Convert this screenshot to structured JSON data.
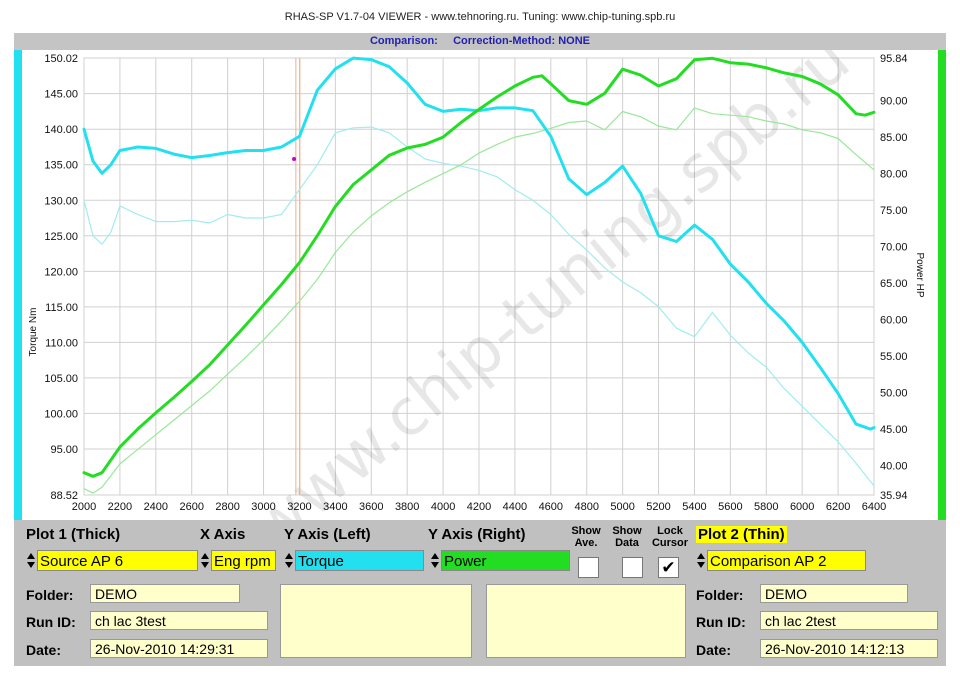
{
  "app_title": "RHAS-SP V1.7-04  VIEWER - www.tehnoring.ru. Tuning: www.chip-tuning.spb.ru",
  "subtitle": {
    "label": "Comparison:",
    "method": "Correction-Method: NONE"
  },
  "watermark": "www.chip-tuning.spb.ru",
  "colors": {
    "torque": "#22e0f0",
    "power": "#22dd22",
    "cursor": "#f0b090",
    "marker": "#cc00cc",
    "panel": "#c0c0c0",
    "field": "#ffffcc",
    "select_yellow": "#ffff00"
  },
  "chart_data": {
    "type": "line",
    "xlim": [
      2000,
      6400
    ],
    "x_ticks": [
      "2000",
      "2200",
      "2400",
      "2600",
      "2800",
      "3000",
      "3200",
      "3400",
      "3600",
      "3800",
      "4000",
      "4200",
      "4400",
      "4600",
      "4800",
      "5000",
      "5200",
      "5400",
      "5600",
      "5800",
      "6000",
      "6200",
      "6400"
    ],
    "ylim_left": [
      88.52,
      150.02
    ],
    "y_left_ticks": [
      "150.02",
      "145.00",
      "140.00",
      "135.00",
      "130.00",
      "125.00",
      "120.00",
      "115.00",
      "110.00",
      "105.00",
      "100.00",
      "95.00",
      "88.52"
    ],
    "ylabel_left": "Torque Nm",
    "ylim_right": [
      35.94,
      95.84
    ],
    "y_right_ticks": [
      "95.84",
      "90.00",
      "85.00",
      "80.00",
      "75.00",
      "70.00",
      "65.00",
      "60.00",
      "55.00",
      "50.00",
      "45.00",
      "40.00",
      "35.94"
    ],
    "ylabel_right": "Power HP",
    "grid": true,
    "cursor_x": 3180,
    "marker": {
      "x": 3170,
      "y": 135.8
    },
    "series": [
      {
        "axis": "left",
        "thick": true,
        "color": "#22e0f0",
        "x": [
          2000,
          2050,
          2100,
          2150,
          2200,
          2300,
          2400,
          2500,
          2600,
          2700,
          2800,
          2900,
          3000,
          3100,
          3200,
          3300,
          3400,
          3500,
          3600,
          3700,
          3800,
          3900,
          4000,
          4100,
          4200,
          4300,
          4400,
          4500,
          4600,
          4700,
          4800,
          4900,
          5000,
          5100,
          5200,
          5300,
          5400,
          5500,
          5600,
          5700,
          5800,
          5900,
          6000,
          6100,
          6200,
          6300,
          6380,
          6400
        ],
        "y": [
          140.0,
          135.5,
          133.8,
          135.0,
          137.0,
          137.5,
          137.3,
          136.5,
          136.0,
          136.3,
          136.7,
          137.0,
          137.0,
          137.5,
          139.0,
          145.5,
          148.5,
          150.0,
          149.8,
          148.8,
          146.5,
          143.5,
          142.5,
          142.8,
          142.6,
          143.0,
          143.0,
          142.6,
          139.0,
          133.0,
          130.8,
          132.5,
          134.8,
          131.0,
          125.0,
          124.2,
          126.5,
          124.5,
          121.0,
          118.5,
          115.5,
          113.0,
          110.0,
          106.5,
          102.8,
          98.5,
          97.8,
          98.0
        ]
      },
      {
        "axis": "left",
        "thick": false,
        "color": "#a0ecf2",
        "x": [
          2000,
          2050,
          2100,
          2150,
          2200,
          2300,
          2400,
          2500,
          2600,
          2700,
          2800,
          2900,
          3000,
          3100,
          3200,
          3300,
          3400,
          3500,
          3600,
          3700,
          3800,
          3900,
          4000,
          4100,
          4200,
          4300,
          4400,
          4500,
          4600,
          4700,
          4800,
          4900,
          5000,
          5100,
          5200,
          5300,
          5400,
          5500,
          5600,
          5700,
          5800,
          5900,
          6000,
          6100,
          6200,
          6300,
          6400
        ],
        "y": [
          130.0,
          125.0,
          123.8,
          125.5,
          129.2,
          128.0,
          127.0,
          127.0,
          127.2,
          126.8,
          128.0,
          127.5,
          127.5,
          128.0,
          131.5,
          135.0,
          139.5,
          140.2,
          140.3,
          139.5,
          137.5,
          135.8,
          135.2,
          134.8,
          134.2,
          133.3,
          131.5,
          130.0,
          128.0,
          125.2,
          123.0,
          120.5,
          118.5,
          117.0,
          115.0,
          112.0,
          110.8,
          114.2,
          111.0,
          108.5,
          106.5,
          103.5,
          101.0,
          98.5,
          96.0,
          93.0,
          89.8
        ]
      },
      {
        "axis": "right",
        "thick": true,
        "color": "#22dd22",
        "x": [
          2000,
          2050,
          2100,
          2200,
          2300,
          2400,
          2500,
          2600,
          2700,
          2800,
          2900,
          3000,
          3100,
          3200,
          3300,
          3400,
          3500,
          3600,
          3700,
          3800,
          3900,
          4000,
          4100,
          4200,
          4300,
          4400,
          4500,
          4550,
          4600,
          4700,
          4800,
          4900,
          5000,
          5100,
          5200,
          5300,
          5400,
          5500,
          5600,
          5700,
          5800,
          5900,
          6000,
          6100,
          6200,
          6300,
          6350,
          6400
        ],
        "y": [
          39.0,
          38.5,
          39.0,
          42.5,
          45.0,
          47.2,
          49.3,
          51.5,
          53.8,
          56.5,
          59.2,
          62.0,
          64.8,
          67.8,
          71.5,
          75.5,
          78.5,
          80.5,
          82.5,
          83.5,
          84.0,
          85.0,
          87.0,
          88.8,
          90.5,
          92.0,
          93.2,
          93.4,
          92.3,
          90.0,
          89.5,
          91.0,
          94.3,
          93.5,
          92.0,
          93.0,
          95.6,
          95.8,
          95.2,
          95.0,
          94.5,
          93.8,
          93.3,
          92.3,
          90.8,
          88.2,
          88.0,
          88.4
        ]
      },
      {
        "axis": "right",
        "thick": false,
        "color": "#99e899",
        "x": [
          2000,
          2050,
          2100,
          2200,
          2300,
          2400,
          2500,
          2600,
          2700,
          2800,
          2900,
          3000,
          3100,
          3200,
          3300,
          3400,
          3500,
          3600,
          3700,
          3800,
          3900,
          4000,
          4100,
          4200,
          4300,
          4400,
          4500,
          4600,
          4700,
          4800,
          4900,
          5000,
          5100,
          5200,
          5300,
          5400,
          5500,
          5600,
          5700,
          5800,
          5900,
          6000,
          6100,
          6200,
          6300,
          6400
        ],
        "y": [
          36.8,
          36.2,
          37.0,
          40.2,
          42.2,
          44.2,
          46.2,
          48.2,
          50.2,
          52.5,
          54.8,
          57.2,
          59.8,
          62.5,
          65.5,
          69.2,
          72.0,
          74.2,
          76.0,
          77.5,
          78.8,
          80.0,
          81.2,
          82.8,
          84.0,
          85.0,
          85.5,
          86.2,
          87.0,
          87.2,
          86.0,
          88.5,
          87.8,
          86.5,
          86.0,
          89.0,
          88.2,
          88.0,
          87.8,
          87.2,
          86.8,
          86.0,
          85.6,
          84.8,
          82.6,
          80.5
        ]
      }
    ]
  },
  "panel": {
    "plot1_header": "Plot 1 (Thick)",
    "xaxis_header": "X Axis",
    "yleft_header": "Y Axis (Left)",
    "yright_header": "Y Axis (Right)",
    "show_ave_1": "Show",
    "show_ave_2": "Ave.",
    "show_data_1": "Show",
    "show_data_2": "Data",
    "lock_cursor_1": "Lock",
    "lock_cursor_2": "Cursor",
    "plot2_header": "Plot 2 (Thin)",
    "plot1_select": "Source AP 6",
    "xaxis_select": "Eng rpm",
    "yleft_select": "Torque",
    "yright_select": "Power",
    "plot2_select": "Comparison AP 2",
    "checkmark": "✔",
    "folder_label": "Folder:",
    "runid_label": "Run ID:",
    "date_label": "Date:",
    "plot1_folder": "DEMO",
    "plot1_runid": "ch lac 3test",
    "plot1_date": "26-Nov-2010  14:29:31",
    "plot2_folder": "DEMO",
    "plot2_runid": "ch lac 2test",
    "plot2_date": "26-Nov-2010  14:12:13"
  }
}
